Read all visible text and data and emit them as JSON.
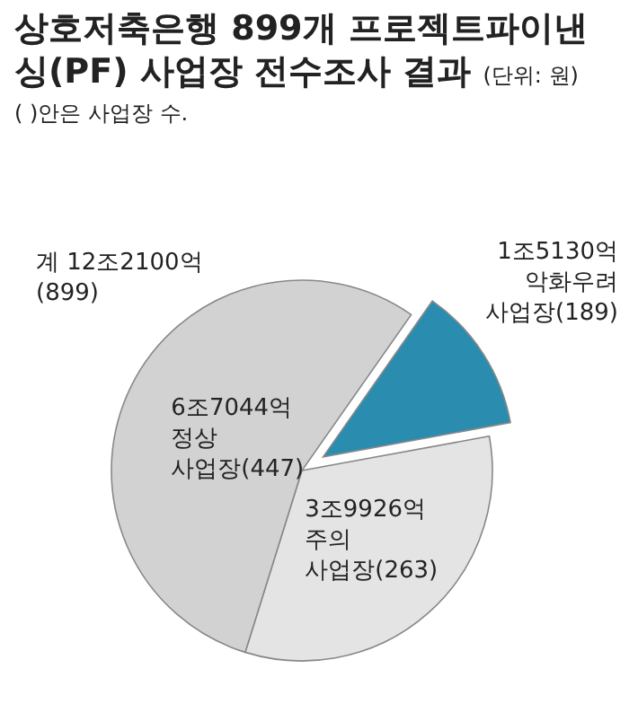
{
  "chart_data": {
    "type": "pie",
    "title": "상호저축은행 899개 프로젝트파이낸싱(PF) 사업장 전수조사 결과",
    "subtitle": "(단위: 원)",
    "annotations": [
      "( )안은 사업장 수.",
      "계 12조2100억 (899)"
    ],
    "categories": [
      "1조5130억 악화우려 사업장(189)",
      "3조9926억 주의 사업장(263)",
      "6조7044억 정상 사업장(447)"
    ],
    "values": [
      12.39,
      32.7,
      54.91
    ],
    "colors": [
      "#2a8db0",
      "#e4e4e4",
      "#d2d2d2"
    ]
  }
}
